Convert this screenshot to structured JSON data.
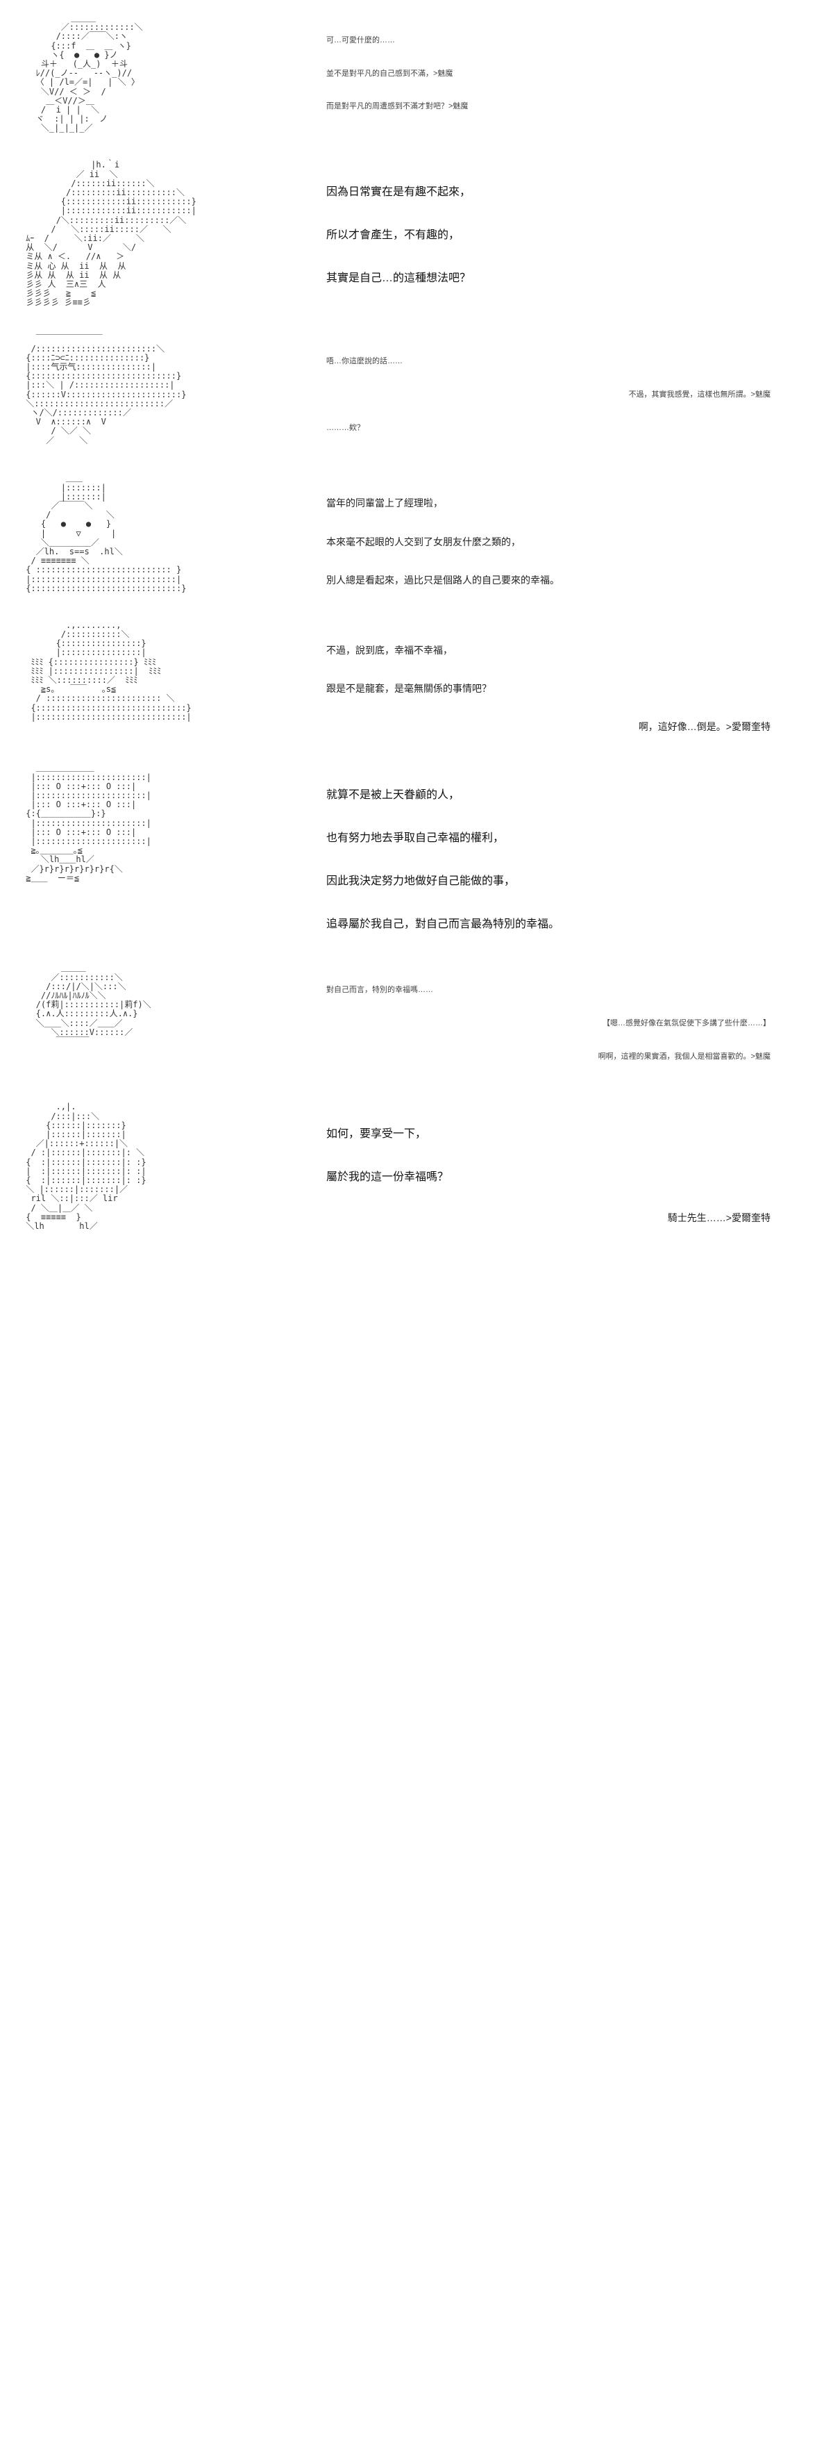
{
  "panels": [
    {
      "ascii": "          ＿＿＿\n        ／:::::::::::::＼\n       /::::／￣￣＼:ヽ\n      {:::f  ＿  ＿ ヽ}\n      ヽ{  ●   ● }ノ\n    斗＋   (_人_)  ＋斗\n   ﾚ//(_ノ‐-   -‐ヽ_)//\n   〈 | /l=／=|   | ＼ 〉\n    ＼V// ＜ ＞  /\n     ＿＜V//＞＿\n    /  i | |  ＼\n   ヾ  :| | |:  ノ\n    ＼_|_|_|_／",
      "lines": [
        {
          "text": "可…可愛什麼的……",
          "class": "dialogue-line-small"
        },
        {
          "text": "並不是對平凡的自己感到不滿，>魅魔",
          "class": "dialogue-line-small"
        },
        {
          "text": "而是對平凡的周遭感到不滿才對吧？>魅魔",
          "class": "dialogue-line-small"
        }
      ]
    },
    {
      "ascii": "              |h.｀i\n           ／ ii  ＼\n          /::::::ii::::::＼\n         /:::::::::ii::::::::::＼\n        {::::::::::::ii:::::::::::}\n        |::::::::::::ii:::::::::::|\n       /＼:::::::::ii:::::::::／＼\n      /   ＼:::::ii:::::／   ＼\n ﾑｰ  /     ＼:ii:／     ＼\n 从  ＼/      V      ＼/\n ミ从 ∧ ＜.   //∧   ＞\n ミ从 心 从  ii  从  从\n 彡从 从  从 ii  从 从\n 彡彡 人  三∧三  人\n 彡彡彡   ≧    ≦\n 彡彡彡彡 彡≡≡彡",
      "lines": [
        {
          "text": "因為日常實在是有趣不起來，",
          "class": "dialogue-line-large"
        },
        {
          "text": "所以才會產生，不有趣的，",
          "class": "dialogue-line-large"
        },
        {
          "text": "其實是自己…的這種想法吧？",
          "class": "dialogue-line-large"
        }
      ]
    },
    {
      "ascii": "   ￣￣￣￣￣￣￣￣\n  /::::::::::::::::::::::::＼\n {::::ﾆ⊃⊂ﾆ:::::::::::::::}\n |::::气示气:::::::::::::::|\n {:::::::::::::::::::::::::::::}\n |:::＼ | /:::::::::::::::::::|\n {::::::V:::::::::::::::::::::::}\n ＼::::::::::::::::::::::::::／\n  ヽ/＼/:::::::::::::／\n   V  ∧::::::∧  V\n      / ＼／ ＼\n     ／     ＼",
      "lines": [
        {
          "text": "唔…你這麼說的話……",
          "class": "dialogue-line-small"
        },
        {
          "text": "不過，其實我感覺，這樣也無所謂。>魅魔",
          "class": "dialogue-line-small right-align"
        },
        {
          "text": "………欸？",
          "class": "dialogue-line-small"
        }
      ]
    },
    {
      "ascii": "         ＿＿\n        |:::::::|\n        |:::::::|\n      ／￣￣￣＼\n     /           ＼\n    {   ●    ●   }\n    |      ▽      |\n    ＼＿＿＿＿＿／\n   ／lh.  s==s  .hl＼\n  / ≡≡≡≡≡≡≡ ＼\n { ::::::::::::::::::::::::::: }\n |:::::::::::::::::::::::::::::|\n {::::::::::::::::::::::::::::::}",
      "lines": [
        {
          "text": "當年的同輩當上了經理啦，",
          "class": "dialogue-line"
        },
        {
          "text": "本來毫不起眼的人交到了女朋友什麼之類的，",
          "class": "dialogue-line"
        },
        {
          "text": "別人總是看起來，過比只是個路人的自己要來的幸福。",
          "class": "dialogue-line"
        }
      ]
    },
    {
      "ascii": "         .,........,\n        /:::::::::::＼\n       {::::::::::::::::}\n       |::::::::::::::::|\n  ﾐﾐﾐ {::::::::::::::::} ﾐﾐﾐ\n  ﾐﾐﾐ |::::::::::::::::|  ﾐﾐﾐ\n  ﾐﾐﾐ ＼::::::::::／  ﾐﾐﾐ\n    ≧s｡   ￣￣   ｡s≦\n   / ::::::::::::::::::::::: ＼\n  {::::::::::::::::::::::::::::::}\n  |::::::::::::::::::::::::::::::|",
      "lines": [
        {
          "text": "不過，說到底，幸福不幸福，",
          "class": "dialogue-line"
        },
        {
          "text": "跟是不是龍套，是毫無關係的事情吧？",
          "class": "dialogue-line"
        },
        {
          "text": "啊，這好像…倒是。>愛爾奎特",
          "class": "dialogue-line right-align"
        }
      ]
    },
    {
      "ascii": "   ＿＿＿＿＿＿＿\n  |::::::::::::::::::::::|\n  |::: O :::+::: O :::|\n  |::::::::::::::::::::::|\n  |::: O :::+::: O :::|\n {:{＿＿＿＿＿＿}:}\n  |::::::::::::::::::::::|\n  |::: O :::+::: O :::|\n  |::::::::::::::::::::::|\n  ≧｡＿＿＿＿｡≦\n    ＼lh＿＿hl／\n  ／}r}r}r}r}r}r}r{＼\n ≧＿＿  ー＝≦",
      "lines": [
        {
          "text": "就算不是被上天眷顧的人，",
          "class": "dialogue-line-large"
        },
        {
          "text": "也有努力地去爭取自己幸福的權利，",
          "class": "dialogue-line-large"
        },
        {
          "text": "因此我決定努力地做好自己能做的事，",
          "class": "dialogue-line-large"
        },
        {
          "text": "追尋屬於我自己，對自己而言最為特別的幸福。",
          "class": "dialogue-line-large"
        }
      ]
    },
    {
      "ascii": "        ＿＿＿\n      ／:::::::::::＼\n     /:::/|/＼|＼:::＼\n    //ﾉﾙﾊﾙ|ﾊﾙﾉﾙ＼＼\n   /(f莉|:::::::::::|莉f)＼\n   {.∧.人:::::::::人.∧.}\n   ＼＿＿＼::::／＿＿／\n      ＼::::::V::::::／\n       ￣￣￣￣",
      "lines": [
        {
          "text": "對自己而言，特別的幸福嗎……",
          "class": "dialogue-line-small"
        },
        {
          "text": "【嗯…感覺好像在氣氛促使下多講了些什麼……】",
          "class": "dialogue-line-small right-align"
        },
        {
          "text": "啊啊，這裡的果實酒，我個人是相當喜歡的。>魅魔",
          "class": "dialogue-line-small right-align"
        }
      ]
    },
    {
      "ascii": "       .,|.\n      /:::|:::＼\n     {::::::|:::::::}\n     |::::::|:::::::|\n   ／|::::::+::::::|＼\n  / :|::::::|:::::::|: ＼\n {  :|::::::|:::::::|: :}\n |  :|::::::|:::::::|: :|\n {  :|::::::|:::::::|: :}\n ＼ |::::::|:::::::|／\n  ril ＼::|:::／ lir\n  / ＼＿|＿／ ＼\n {  ≡≡≡≡≡  }\n ＼lh       hl／",
      "lines": [
        {
          "text": "如何，要享受一下，",
          "class": "dialogue-line-large"
        },
        {
          "text": "屬於我的這一份幸福嗎？",
          "class": "dialogue-line-large"
        },
        {
          "text": "騎士先生……>愛爾奎特",
          "class": "dialogue-line right-align"
        }
      ]
    }
  ]
}
